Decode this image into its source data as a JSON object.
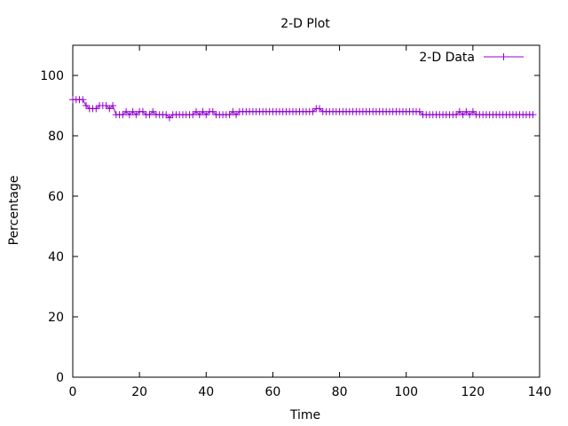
{
  "chart_data": {
    "type": "line",
    "title": "2-D Plot",
    "xlabel": "Time",
    "ylabel": "Percentage",
    "xlim": [
      0,
      140
    ],
    "ylim": [
      0,
      110
    ],
    "xticks": [
      0,
      20,
      40,
      60,
      80,
      100,
      120,
      140
    ],
    "yticks": [
      0,
      20,
      40,
      60,
      80,
      100
    ],
    "xtick_labels": [
      "0",
      "20",
      "40",
      "60",
      "80",
      "100",
      "120",
      "140"
    ],
    "ytick_labels": [
      "0",
      "20",
      "40",
      "60",
      "80",
      "100"
    ],
    "grid": false,
    "legend_position": "top-right",
    "series": [
      {
        "name": "2-D Data",
        "color": "#9400d3",
        "marker": "plus",
        "x": [
          0,
          1,
          2,
          3,
          4,
          5,
          6,
          7,
          8,
          9,
          10,
          11,
          12,
          13,
          14,
          15,
          16,
          17,
          18,
          19,
          20,
          21,
          22,
          23,
          24,
          25,
          26,
          27,
          28,
          29,
          30,
          31,
          32,
          33,
          34,
          35,
          36,
          37,
          38,
          39,
          40,
          41,
          42,
          43,
          44,
          45,
          46,
          47,
          48,
          49,
          50,
          51,
          52,
          53,
          54,
          55,
          56,
          57,
          58,
          59,
          60,
          61,
          62,
          63,
          64,
          65,
          66,
          67,
          68,
          69,
          70,
          71,
          72,
          73,
          74,
          75,
          76,
          77,
          78,
          79,
          80,
          81,
          82,
          83,
          84,
          85,
          86,
          87,
          88,
          89,
          90,
          91,
          92,
          93,
          94,
          95,
          96,
          97,
          98,
          99,
          100,
          101,
          102,
          103,
          104,
          105,
          106,
          107,
          108,
          109,
          110,
          111,
          112,
          113,
          114,
          115,
          116,
          117,
          118,
          119,
          120,
          121,
          122,
          123,
          124,
          125,
          126,
          127,
          128,
          129,
          130,
          131,
          132,
          133,
          134,
          135,
          136,
          137,
          138
        ],
        "y": [
          92,
          92,
          92,
          92,
          90,
          89,
          89,
          89,
          90,
          90,
          90,
          89,
          90,
          87,
          87,
          87,
          88,
          87,
          88,
          87,
          88,
          88,
          87,
          87,
          88,
          87,
          87,
          87,
          87,
          86,
          87,
          87,
          87,
          87,
          87,
          87,
          87,
          88,
          87,
          88,
          87,
          88,
          88,
          87,
          87,
          87,
          87,
          87,
          88,
          87,
          88,
          88,
          88,
          88,
          88,
          88,
          88,
          88,
          88,
          88,
          88,
          88,
          88,
          88,
          88,
          88,
          88,
          88,
          88,
          88,
          88,
          88,
          88,
          89,
          89,
          88,
          88,
          88,
          88,
          88,
          88,
          88,
          88,
          88,
          88,
          88,
          88,
          88,
          88,
          88,
          88,
          88,
          88,
          88,
          88,
          88,
          88,
          88,
          88,
          88,
          88,
          88,
          88,
          88,
          88,
          87,
          87,
          87,
          87,
          87,
          87,
          87,
          87,
          87,
          87,
          87,
          88,
          87,
          88,
          87,
          88,
          87,
          87,
          87,
          87,
          87,
          87,
          87,
          87,
          87,
          87,
          87,
          87,
          87,
          87,
          87,
          87,
          87,
          87
        ]
      }
    ]
  }
}
